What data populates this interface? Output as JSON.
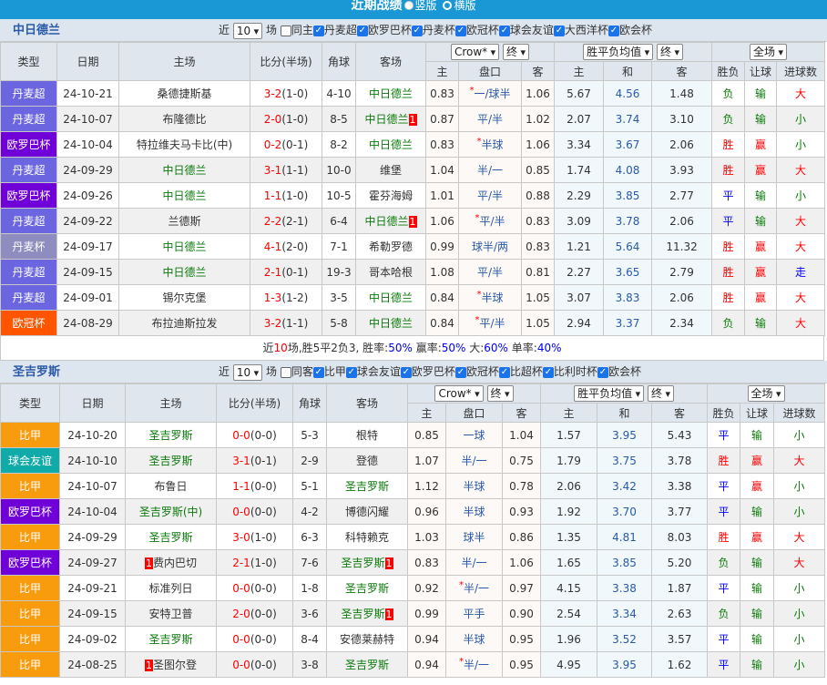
{
  "header": {
    "title": "近期战绩",
    "opt_vertical": "竖版",
    "opt_horizontal": "横版"
  },
  "colors": {
    "banner": "#1a98d5",
    "丹麦超": "#6b66e0",
    "欧罗巴杯": "#6f00d8",
    "丹麦杯": "#8f8cc0",
    "欧冠杯": "#ff5400",
    "比甲": "#f89c0e",
    "球会友谊": "#10aaa8"
  },
  "columns": {
    "type": "类型",
    "date": "日期",
    "home": "主场",
    "score": "比分(半场)",
    "corners": "角球",
    "away": "客场",
    "h": "主",
    "line": "盘口",
    "a": "客",
    "eh": "主",
    "ed": "和",
    "ea": "客",
    "res": "胜负",
    "hc": "让球",
    "ou": "进球数"
  },
  "selects": {
    "company": "Crow*",
    "final": "终",
    "euro": "胜平负均值",
    "final2": "终",
    "period": "全场"
  },
  "sections": [
    {
      "team": "中日德兰",
      "near": "近",
      "count": "10",
      "unit": "场",
      "same": "同主",
      "filters": [
        "丹麦超",
        "欧罗巴杯",
        "丹麦杯",
        "欧冠杯",
        "球会友谊",
        "大西洋杯",
        "欧会杯"
      ],
      "rows": [
        {
          "type": "丹麦超",
          "date": "24-10-21",
          "home": "桑德捷斯基",
          "hr": "",
          "score": "3-2",
          "ht": "(1-0)",
          "corners": "4-10",
          "away": "中日德兰",
          "ar": "",
          "oh": "0.83",
          "star": true,
          "line": "一/球半",
          "oa": "1.06",
          "eh": "5.67",
          "ed": "4.56",
          "ea": "1.48",
          "res": "负",
          "hc": "输",
          "ou": "大"
        },
        {
          "type": "丹麦超",
          "date": "24-10-07",
          "home": "布隆德比",
          "hr": "",
          "score": "2-0",
          "ht": "(1-0)",
          "corners": "8-5",
          "away": "中日德兰",
          "ar": "1",
          "oh": "0.87",
          "star": false,
          "line": "平/半",
          "oa": "1.02",
          "eh": "2.07",
          "ed": "3.74",
          "ea": "3.10",
          "res": "负",
          "hc": "输",
          "ou": "小"
        },
        {
          "type": "欧罗巴杯",
          "date": "24-10-04",
          "home": "特拉维夫马卡比(中)",
          "hr": "",
          "score": "0-2",
          "ht": "(0-1)",
          "corners": "8-2",
          "away": "中日德兰",
          "ar": "",
          "oh": "0.83",
          "star": true,
          "line": "半球",
          "oa": "1.06",
          "eh": "3.34",
          "ed": "3.67",
          "ea": "2.06",
          "res": "胜",
          "hc": "赢",
          "ou": "小"
        },
        {
          "type": "丹麦超",
          "date": "24-09-29",
          "home": "中日德兰",
          "hr": "",
          "score": "3-1",
          "ht": "(1-1)",
          "corners": "10-0",
          "away": "维堡",
          "ar": "",
          "oh": "1.04",
          "star": false,
          "line": "半/一",
          "oa": "0.85",
          "eh": "1.74",
          "ed": "4.08",
          "ea": "3.93",
          "res": "胜",
          "hc": "赢",
          "ou": "大"
        },
        {
          "type": "欧罗巴杯",
          "date": "24-09-26",
          "home": "中日德兰",
          "hr": "",
          "score": "1-1",
          "ht": "(1-0)",
          "corners": "10-5",
          "away": "霍芬海姆",
          "ar": "",
          "oh": "1.01",
          "star": false,
          "line": "平/半",
          "oa": "0.88",
          "eh": "2.29",
          "ed": "3.85",
          "ea": "2.77",
          "res": "平",
          "hc": "输",
          "ou": "小"
        },
        {
          "type": "丹麦超",
          "date": "24-09-22",
          "home": "兰德斯",
          "hr": "",
          "score": "2-2",
          "ht": "(2-1)",
          "corners": "6-4",
          "away": "中日德兰",
          "ar": "1",
          "oh": "1.06",
          "star": true,
          "line": "平/半",
          "oa": "0.83",
          "eh": "3.09",
          "ed": "3.78",
          "ea": "2.06",
          "res": "平",
          "hc": "输",
          "ou": "大"
        },
        {
          "type": "丹麦杯",
          "date": "24-09-17",
          "home": "中日德兰",
          "hr": "",
          "score": "4-1",
          "ht": "(2-0)",
          "corners": "7-1",
          "away": "希勒罗德",
          "ar": "",
          "oh": "0.99",
          "star": false,
          "line": "球半/两",
          "oa": "0.83",
          "eh": "1.21",
          "ed": "5.64",
          "ea": "11.32",
          "res": "胜",
          "hc": "赢",
          "ou": "大"
        },
        {
          "type": "丹麦超",
          "date": "24-09-15",
          "home": "中日德兰",
          "hr": "",
          "score": "2-1",
          "ht": "(0-1)",
          "corners": "19-3",
          "away": "哥本哈根",
          "ar": "",
          "oh": "1.08",
          "star": false,
          "line": "平/半",
          "oa": "0.81",
          "eh": "2.27",
          "ed": "3.65",
          "ea": "2.79",
          "res": "胜",
          "hc": "赢",
          "ou": "走"
        },
        {
          "type": "丹麦超",
          "date": "24-09-01",
          "home": "锡尔克堡",
          "hr": "",
          "score": "1-3",
          "ht": "(1-2)",
          "corners": "3-5",
          "away": "中日德兰",
          "ar": "",
          "oh": "0.84",
          "star": true,
          "line": "半球",
          "oa": "1.05",
          "eh": "3.07",
          "ed": "3.83",
          "ea": "2.06",
          "res": "胜",
          "hc": "赢",
          "ou": "大"
        },
        {
          "type": "欧冠杯",
          "date": "24-08-29",
          "home": "布拉迪斯拉发",
          "hr": "",
          "score": "3-2",
          "ht": "(1-1)",
          "corners": "5-8",
          "away": "中日德兰",
          "ar": "",
          "oh": "0.84",
          "star": true,
          "line": "平/半",
          "oa": "1.05",
          "eh": "2.94",
          "ed": "3.37",
          "ea": "2.34",
          "res": "负",
          "hc": "输",
          "ou": "大"
        }
      ],
      "summary": {
        "p1": "近",
        "n": "10",
        "p2": "场,胜5平2负3, 胜率:",
        "win": "50%",
        "p3": " 赢率:",
        "cover": "50%",
        "p4": " 大:",
        "big": "60%",
        "p5": " 单率:",
        "odd": "40%"
      }
    },
    {
      "team": "圣吉罗斯",
      "near": "近",
      "count": "10",
      "unit": "场",
      "same": "同客",
      "filters": [
        "比甲",
        "球会友谊",
        "欧罗巴杯",
        "欧冠杯",
        "比超杯",
        "比利时杯",
        "欧会杯"
      ],
      "rows": [
        {
          "type": "比甲",
          "date": "24-10-20",
          "home": "圣吉罗斯",
          "hr": "",
          "score": "0-0",
          "ht": "(0-0)",
          "corners": "5-3",
          "away": "根特",
          "ar": "",
          "oh": "0.85",
          "star": false,
          "line": "一球",
          "oa": "1.04",
          "eh": "1.57",
          "ed": "3.95",
          "ea": "5.43",
          "res": "平",
          "hc": "输",
          "ou": "小"
        },
        {
          "type": "球会友谊",
          "date": "24-10-10",
          "home": "圣吉罗斯",
          "hr": "",
          "score": "3-1",
          "ht": "(0-1)",
          "corners": "2-9",
          "away": "登德",
          "ar": "",
          "oh": "1.07",
          "star": false,
          "line": "半/一",
          "oa": "0.75",
          "eh": "1.79",
          "ed": "3.75",
          "ea": "3.78",
          "res": "胜",
          "hc": "赢",
          "ou": "大"
        },
        {
          "type": "比甲",
          "date": "24-10-07",
          "home": "布鲁日",
          "hr": "",
          "score": "1-1",
          "ht": "(0-0)",
          "corners": "5-1",
          "away": "圣吉罗斯",
          "ar": "",
          "oh": "1.12",
          "star": false,
          "line": "半球",
          "oa": "0.78",
          "eh": "2.06",
          "ed": "3.42",
          "ea": "3.38",
          "res": "平",
          "hc": "赢",
          "ou": "小"
        },
        {
          "type": "欧罗巴杯",
          "date": "24-10-04",
          "home": "圣吉罗斯(中)",
          "hr": "",
          "score": "0-0",
          "ht": "(0-0)",
          "corners": "4-2",
          "away": "博德闪耀",
          "ar": "",
          "oh": "0.96",
          "star": false,
          "line": "半球",
          "oa": "0.93",
          "eh": "1.92",
          "ed": "3.70",
          "ea": "3.77",
          "res": "平",
          "hc": "输",
          "ou": "小"
        },
        {
          "type": "比甲",
          "date": "24-09-29",
          "home": "圣吉罗斯",
          "hr": "",
          "score": "3-0",
          "ht": "(1-0)",
          "corners": "6-3",
          "away": "科特赖克",
          "ar": "",
          "oh": "1.03",
          "star": false,
          "line": "球半",
          "oa": "0.86",
          "eh": "1.35",
          "ed": "4.81",
          "ea": "8.03",
          "res": "胜",
          "hc": "赢",
          "ou": "大"
        },
        {
          "type": "欧罗巴杯",
          "date": "24-09-27",
          "home": "费内巴切",
          "hr": "1",
          "score": "2-1",
          "ht": "(1-0)",
          "corners": "7-6",
          "away": "圣吉罗斯",
          "ar": "1",
          "oh": "0.83",
          "star": false,
          "line": "半/一",
          "oa": "1.06",
          "eh": "1.65",
          "ed": "3.85",
          "ea": "5.20",
          "res": "负",
          "hc": "输",
          "ou": "大"
        },
        {
          "type": "比甲",
          "date": "24-09-21",
          "home": "标准列日",
          "hr": "",
          "score": "0-0",
          "ht": "(0-0)",
          "corners": "1-8",
          "away": "圣吉罗斯",
          "ar": "",
          "oh": "0.92",
          "star": true,
          "line": "半/一",
          "oa": "0.97",
          "eh": "4.15",
          "ed": "3.38",
          "ea": "1.87",
          "res": "平",
          "hc": "输",
          "ou": "小"
        },
        {
          "type": "比甲",
          "date": "24-09-15",
          "home": "安特卫普",
          "hr": "",
          "score": "2-0",
          "ht": "(0-0)",
          "corners": "3-6",
          "away": "圣吉罗斯",
          "ar": "1",
          "oh": "0.99",
          "star": false,
          "line": "平手",
          "oa": "0.90",
          "eh": "2.54",
          "ed": "3.34",
          "ea": "2.63",
          "res": "负",
          "hc": "输",
          "ou": "小"
        },
        {
          "type": "比甲",
          "date": "24-09-02",
          "home": "圣吉罗斯",
          "hr": "",
          "score": "0-0",
          "ht": "(0-0)",
          "corners": "8-4",
          "away": "安德莱赫特",
          "ar": "",
          "oh": "0.94",
          "star": false,
          "line": "半球",
          "oa": "0.95",
          "eh": "1.96",
          "ed": "3.52",
          "ea": "3.57",
          "res": "平",
          "hc": "输",
          "ou": "小"
        },
        {
          "type": "比甲",
          "date": "24-08-25",
          "home": "圣图尔登",
          "hr": "1",
          "score": "0-0",
          "ht": "(0-0)",
          "corners": "3-8",
          "away": "圣吉罗斯",
          "ar": "",
          "oh": "0.94",
          "star": true,
          "line": "半/一",
          "oa": "0.95",
          "eh": "4.95",
          "ed": "3.95",
          "ea": "1.62",
          "res": "平",
          "hc": "输",
          "ou": "小"
        }
      ]
    }
  ]
}
